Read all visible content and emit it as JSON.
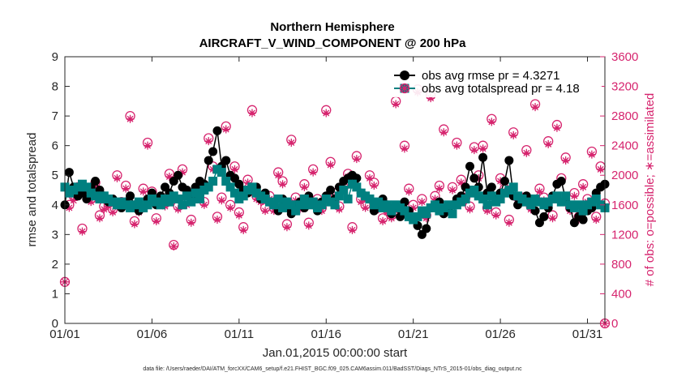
{
  "chart_data": {
    "type": "line",
    "title": [
      "Northern Hemisphere",
      "AIRCRAFT_V_WIND_COMPONENT @ 200 hPa"
    ],
    "xlabel": "Jan.01,2015 00:00:00 start",
    "ylabel_left": "rmse and totalspread",
    "ylabel_right": "# of obs: o=possible; ∗=assimilated",
    "footer": "data file: /Users/raeder/DAI/ATM_forcXX/CAM6_setup/f.e21.FHIST_BGC.f09_025.CAM6assim.011/BadSST/Diags_NTrS_2015-01/obs_diag_output.nc",
    "x_range": [
      1,
      32
    ],
    "x_ticks": [
      1,
      6,
      11,
      16,
      21,
      26,
      31
    ],
    "x_tick_labels": [
      "01/01",
      "01/06",
      "01/11",
      "01/16",
      "01/21",
      "01/26",
      "01/31"
    ],
    "ylim_left": [
      0,
      9
    ],
    "y_ticks_left": [
      "0",
      "1",
      "2",
      "3",
      "4",
      "5",
      "6",
      "7",
      "8",
      "9"
    ],
    "ylim_right": [
      0,
      3600
    ],
    "y_ticks_right": [
      "0",
      "400",
      "800",
      "1200",
      "1600",
      "2000",
      "2400",
      "2800",
      "3200",
      "3600"
    ],
    "legend": [
      "obs avg rmse pr = 4.3271",
      "obs avg totalspread pr = 4.18"
    ],
    "legend_location": "top-right",
    "colors": {
      "rmse": "#000000",
      "spread": "#008080",
      "obs": "#d6246e"
    },
    "series": [
      {
        "name": "rmse",
        "axis": "left",
        "x_start": 1.0,
        "x_step": 0.25,
        "values": [
          4.0,
          5.1,
          4.6,
          4.3,
          4.4,
          4.2,
          4.6,
          4.8,
          4.5,
          4.3,
          4.1,
          4.2,
          4.0,
          3.9,
          4.1,
          4.3,
          4.0,
          3.8,
          3.9,
          4.2,
          4.4,
          4.0,
          4.3,
          4.6,
          4.4,
          4.8,
          5.0,
          4.6,
          4.5,
          4.3,
          4.6,
          4.8,
          4.7,
          5.5,
          5.8,
          6.5,
          5.3,
          5.5,
          5.0,
          4.9,
          4.7,
          4.5,
          4.4,
          4.5,
          4.6,
          4.2,
          4.4,
          4.1,
          4.0,
          3.8,
          4.2,
          3.9,
          3.7,
          4.0,
          4.1,
          3.9,
          4.3,
          4.0,
          3.8,
          4.1,
          4.3,
          4.5,
          4.2,
          4.6,
          4.8,
          4.9,
          5.0,
          4.9,
          4.4,
          4.3,
          4.2,
          3.8,
          4.0,
          4.2,
          4.0,
          3.7,
          3.9,
          3.6,
          4.1,
          3.8,
          3.5,
          3.3,
          3.0,
          3.2,
          3.9,
          4.0,
          4.1,
          3.7,
          3.9,
          4.0,
          4.2,
          4.3,
          4.6,
          5.3,
          4.9,
          4.6,
          5.6,
          4.4,
          4.6,
          4.2,
          4.4,
          4.8,
          5.5,
          4.3,
          4.0,
          4.2,
          4.3,
          4.1,
          3.8,
          3.4,
          3.6,
          3.9,
          4.3,
          4.7,
          4.8,
          4.2,
          3.9,
          3.4,
          3.6,
          3.5,
          3.8,
          3.9,
          4.4,
          4.6,
          4.7,
          3.4
        ]
      },
      {
        "name": "spread",
        "axis": "left",
        "x_start": 1.0,
        "x_step": 0.25,
        "values": [
          4.6,
          4.4,
          4.5,
          4.6,
          4.7,
          4.6,
          4.4,
          4.3,
          4.2,
          4.3,
          4.2,
          4.1,
          4.0,
          4.1,
          4.0,
          3.9,
          4.0,
          4.1,
          3.9,
          4.0,
          4.2,
          4.1,
          4.0,
          4.2,
          4.1,
          4.3,
          4.2,
          4.0,
          4.3,
          4.1,
          4.4,
          4.2,
          4.5,
          4.6,
          4.8,
          5.2,
          5.1,
          4.8,
          4.6,
          4.4,
          4.2,
          4.3,
          4.5,
          4.6,
          4.4,
          4.3,
          4.2,
          4.1,
          4.0,
          4.2,
          3.9,
          4.1,
          4.0,
          3.8,
          4.0,
          4.2,
          4.0,
          4.1,
          3.9,
          4.0,
          4.2,
          4.1,
          4.0,
          4.3,
          4.5,
          4.2,
          4.7,
          4.6,
          4.4,
          4.3,
          4.2,
          4.0,
          4.1,
          3.9,
          4.0,
          3.8,
          4.0,
          3.9,
          3.8,
          3.6,
          3.5,
          3.6,
          3.8,
          3.7,
          3.9,
          4.0,
          3.8,
          3.9,
          4.0,
          3.7,
          4.0,
          4.1,
          4.2,
          4.4,
          4.5,
          4.3,
          4.2,
          4.0,
          4.3,
          4.1,
          4.2,
          4.4,
          4.5,
          4.6,
          4.3,
          4.2,
          4.1,
          4.0,
          4.2,
          4.1,
          4.0,
          4.1,
          4.2,
          4.3,
          4.1,
          4.3,
          4.0,
          3.9,
          4.0,
          3.8,
          4.0,
          4.1,
          4.2,
          4.0,
          3.9,
          3.7
        ]
      },
      {
        "name": "obs_possible",
        "axis": "right",
        "x_start": 1.0,
        "x_step": 0.25,
        "values": [
          560,
          1600,
          1720,
          1840,
          1280,
          1740,
          1680,
          1900,
          1460,
          1580,
          1620,
          1540,
          2000,
          1640,
          1860,
          2800,
          1380,
          1540,
          1820,
          2440,
          1780,
          1420,
          1680,
          1620,
          2020,
          1060,
          1580,
          2080,
          1640,
          1400,
          1760,
          1820,
          1640,
          2500,
          2120,
          1440,
          1700,
          2660,
          1600,
          2120,
          1500,
          1300,
          1940,
          2880,
          1720,
          1680,
          1560,
          1720,
          1560,
          2040,
          1920,
          1340,
          2480,
          1700,
          1580,
          1880,
          1360,
          2080,
          1680,
          1560,
          2880,
          2180,
          1760,
          1580,
          1840,
          2020,
          1300,
          2260,
          1680,
          1600,
          2000,
          1900,
          1580,
          1420,
          1540,
          1460,
          3000,
          1540,
          2400,
          1820,
          1600,
          3160,
          1680,
          1460,
          3080,
          1720,
          1860,
          2620,
          1560,
          1840,
          2440,
          1940,
          1700,
          1580,
          2380,
          2000,
          2400,
          1560,
          2760,
          1500,
          1960,
          1820,
          1400,
          2580,
          1700,
          1700,
          2340,
          1580,
          2960,
          1820,
          1700,
          2460,
          1460,
          2680,
          1960,
          2240,
          1560,
          1760,
          1440,
          1880,
          1680,
          2320,
          1440,
          2120,
          1620,
          2940
        ]
      },
      {
        "name": "obs_assimilated",
        "axis": "right",
        "x_start": 1.0,
        "x_step": 0.25,
        "values": [
          560,
          1560,
          1660,
          1800,
          1240,
          1700,
          1640,
          1860,
          1420,
          1540,
          1580,
          1500,
          1960,
          1600,
          1820,
          2760,
          1340,
          1500,
          1780,
          2400,
          1740,
          1380,
          1640,
          1580,
          1980,
          1040,
          1540,
          2040,
          1600,
          1360,
          1720,
          1780,
          1600,
          2460,
          2080,
          1400,
          1660,
          2620,
          1560,
          2080,
          1460,
          1260,
          1900,
          2840,
          1680,
          1640,
          1520,
          1680,
          1520,
          2000,
          1880,
          1300,
          2440,
          1660,
          1540,
          1840,
          1320,
          2040,
          1640,
          1520,
          2840,
          2140,
          1720,
          1540,
          1800,
          1980,
          1260,
          2220,
          1640,
          1560,
          1960,
          1860,
          1540,
          1380,
          1500,
          1420,
          2960,
          1500,
          2360,
          1780,
          1560,
          3120,
          1640,
          1420,
          3040,
          1680,
          1820,
          2580,
          1520,
          1800,
          2400,
          1900,
          1660,
          1540,
          2340,
          1960,
          2360,
          1520,
          2720,
          1460,
          1920,
          1780,
          1360,
          2540,
          1660,
          1660,
          2300,
          1540,
          2920,
          1780,
          1660,
          2420,
          1420,
          2640,
          1920,
          2200,
          1520,
          1720,
          1400,
          1840,
          1640,
          2280,
          1400,
          2080,
          1580,
          2900
        ]
      }
    ]
  }
}
